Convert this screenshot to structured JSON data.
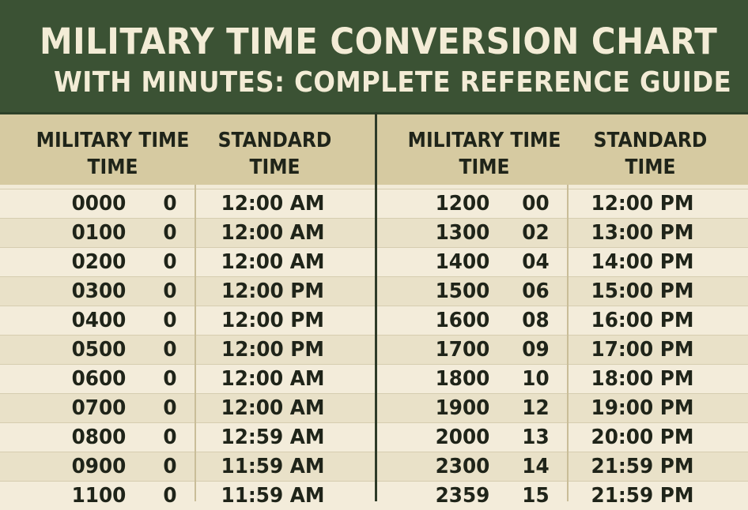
{
  "title": {
    "line1": "MILITARY TIME CONVERSION CHART",
    "line2": "WITH MINUTES: COMPLETE REFERENCE GUIDE"
  },
  "colors": {
    "title_band": "#3b5234",
    "header_band": "#d6caa1",
    "row_light": "#f3ecda",
    "row_dark": "#e9e1c8"
  },
  "left": {
    "headers": {
      "military": "MILITARY TIME\nTIME",
      "military_line1": "MILITARY TIME",
      "military_line2": "TIME",
      "standard_line1": "STANDARD",
      "standard_line2": "TIME"
    },
    "rows": [
      {
        "military": "0000",
        "minutes": "0",
        "standard": "12:00 AM"
      },
      {
        "military": "0100",
        "minutes": "0",
        "standard": "12:00 AM"
      },
      {
        "military": "0200",
        "minutes": "0",
        "standard": "12:00 AM"
      },
      {
        "military": "0300",
        "minutes": "0",
        "standard": "12:00 PM"
      },
      {
        "military": "0400",
        "minutes": "0",
        "standard": "12:00 PM"
      },
      {
        "military": "0500",
        "minutes": "0",
        "standard": "12:00 PM"
      },
      {
        "military": "0600",
        "minutes": "0",
        "standard": "12:00 AM"
      },
      {
        "military": "0700",
        "minutes": "0",
        "standard": "12:00 AM"
      },
      {
        "military": "0800",
        "minutes": "0",
        "standard": "12:59 AM"
      },
      {
        "military": "0900",
        "minutes": "0",
        "standard": "11:59 AM"
      },
      {
        "military": "1100",
        "minutes": "0",
        "standard": "11:59 AM"
      }
    ]
  },
  "right": {
    "headers": {
      "military_line1": "MILITARY TIME",
      "military_line2": "TIME",
      "standard_line1": "STANDARD",
      "standard_line2": "TIME"
    },
    "rows": [
      {
        "military": "1200",
        "minutes": "00",
        "standard": "12:00 PM"
      },
      {
        "military": "1300",
        "minutes": "02",
        "standard": "13:00 PM"
      },
      {
        "military": "1400",
        "minutes": "04",
        "standard": "14:00 PM"
      },
      {
        "military": "1500",
        "minutes": "06",
        "standard": "15:00 PM"
      },
      {
        "military": "1600",
        "minutes": "08",
        "standard": "16:00 PM"
      },
      {
        "military": "1700",
        "minutes": "09",
        "standard": "17:00 PM"
      },
      {
        "military": "1800",
        "minutes": "10",
        "standard": "18:00 PM"
      },
      {
        "military": "1900",
        "minutes": "12",
        "standard": "19:00 PM"
      },
      {
        "military": "2000",
        "minutes": "13",
        "standard": "20:00 PM"
      },
      {
        "military": "2300",
        "minutes": "14",
        "standard": "21:59 PM"
      },
      {
        "military": "2359",
        "minutes": "15",
        "standard": "21:59 PM"
      }
    ]
  }
}
